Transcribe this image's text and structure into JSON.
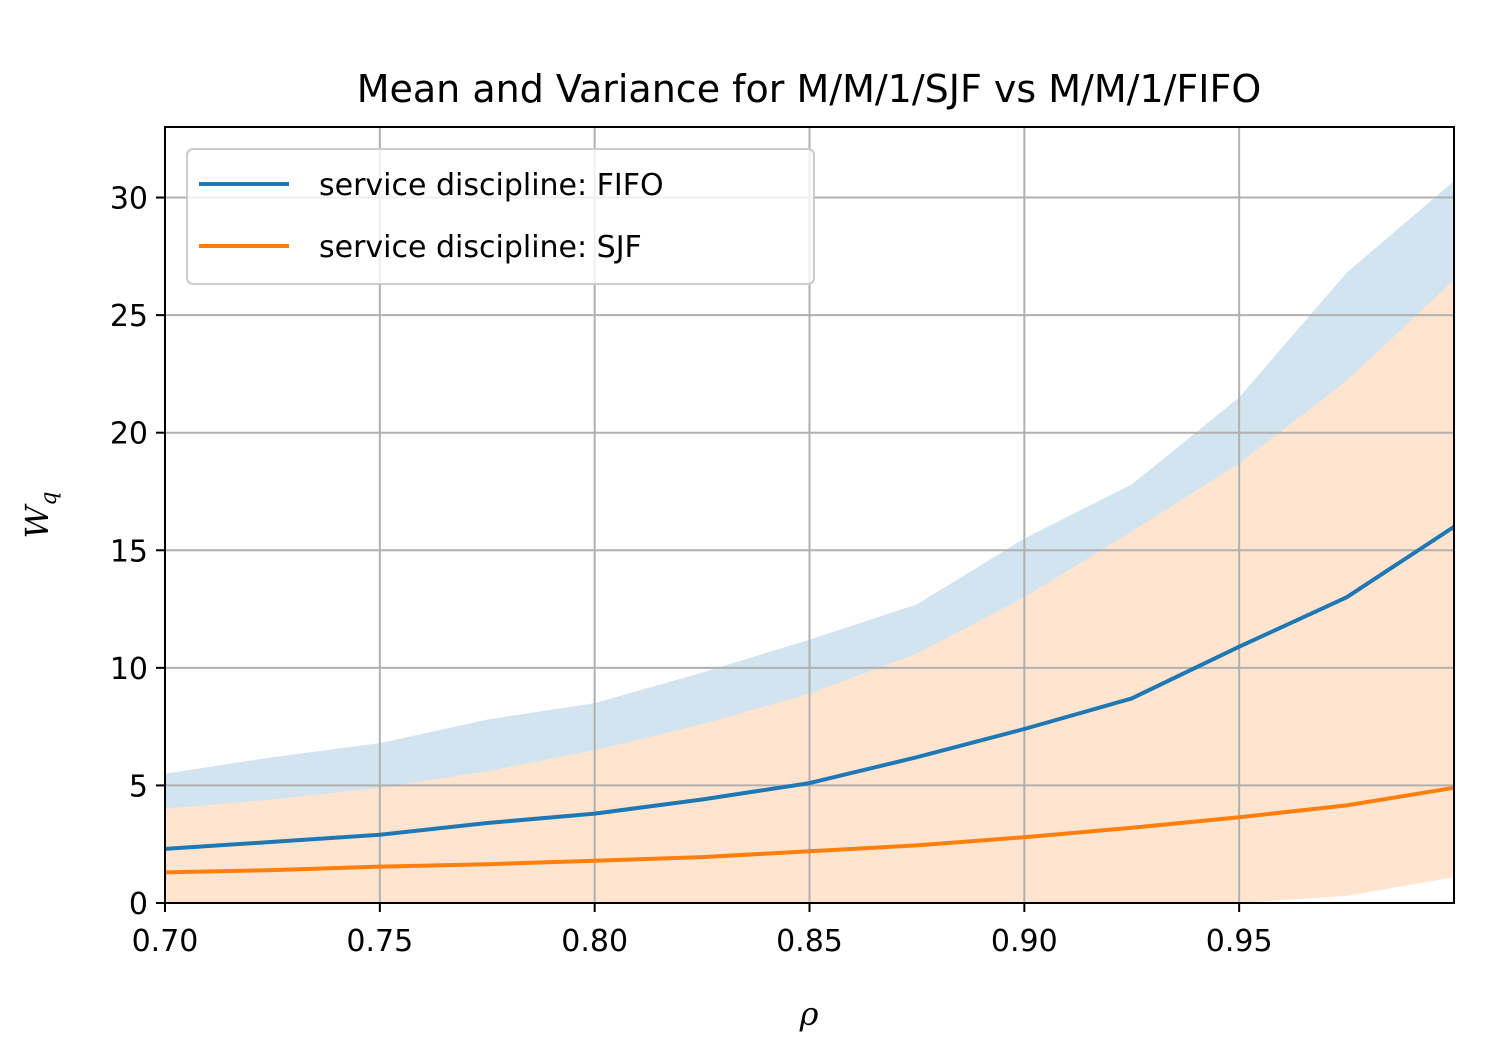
{
  "chart_data": {
    "type": "line",
    "title": "Mean and Variance for M/M/1/SJF vs M/M/1/FIFO",
    "xlabel": "ρ",
    "ylabel": "W",
    "ylabel_sub": "q",
    "xlim": [
      0.7,
      1.0
    ],
    "ylim": [
      0,
      33
    ],
    "xticks": [
      0.7,
      0.75,
      0.8,
      0.85,
      0.9,
      0.95
    ],
    "xtick_labels": [
      "0.70",
      "0.75",
      "0.80",
      "0.85",
      "0.90",
      "0.95"
    ],
    "yticks": [
      0,
      5,
      10,
      15,
      20,
      25,
      30
    ],
    "ytick_labels": [
      "0",
      "5",
      "10",
      "15",
      "20",
      "25",
      "30"
    ],
    "grid": true,
    "legend_position": "top-left",
    "x": [
      0.7,
      0.725,
      0.75,
      0.775,
      0.8,
      0.825,
      0.85,
      0.875,
      0.9,
      0.925,
      0.95,
      0.975,
      1.0
    ],
    "series": [
      {
        "name": "service discipline: FIFO",
        "color": "#1f77b4",
        "band_color": "#1f77b4",
        "values": [
          2.3,
          2.6,
          2.9,
          3.4,
          3.8,
          4.4,
          5.1,
          6.2,
          7.4,
          8.7,
          10.9,
          13.0,
          16.0
        ],
        "upper": [
          5.5,
          6.2,
          6.8,
          7.8,
          8.5,
          9.8,
          11.2,
          12.7,
          15.5,
          17.8,
          21.5,
          26.8,
          30.7
        ],
        "lower": [
          4.0,
          4.4,
          4.9,
          5.6,
          6.5,
          7.6,
          8.9,
          10.6,
          13.0,
          15.8,
          18.7,
          22.2,
          26.5
        ]
      },
      {
        "name": "service discipline: SJF",
        "color": "#ff7f0e",
        "band_color": "#ff7f0e",
        "values": [
          1.3,
          1.4,
          1.55,
          1.65,
          1.8,
          1.95,
          2.2,
          2.45,
          2.8,
          3.2,
          3.65,
          4.15,
          4.9
        ],
        "upper": [
          4.0,
          4.4,
          4.9,
          5.6,
          6.5,
          7.6,
          8.9,
          10.6,
          13.0,
          15.8,
          18.7,
          22.2,
          26.5
        ],
        "lower": [
          0,
          0,
          0,
          0,
          0,
          0,
          0,
          0,
          0,
          0,
          0,
          0.3,
          1.1
        ]
      }
    ]
  }
}
